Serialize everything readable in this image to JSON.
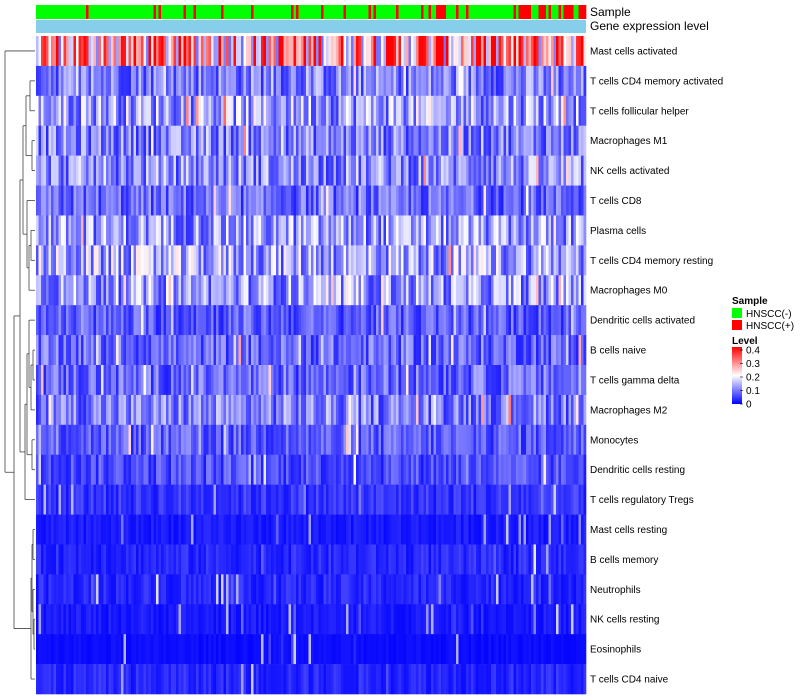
{
  "chart_data": {
    "type": "heatmap",
    "title": "",
    "annotation_labels": [
      "Sample",
      "Gene expression level"
    ],
    "rows": [
      "Mast cells activated",
      "T cells CD4 memory activated",
      "T cells follicular helper",
      "Macrophages M1",
      "NK cells activated",
      "T cells CD8",
      "Plasma cells",
      "T cells CD4 memory resting",
      "Macrophages M0",
      "Dendritic cells activated",
      "B cells naive",
      "T cells gamma delta",
      "Macrophages M2",
      "Monocytes",
      "Dendritic cells resting",
      "T cells regulatory  Tregs",
      "Mast cells resting",
      "B cells memory",
      "Neutrophils",
      "NK cells resting",
      "Eosinophils",
      "T cells CD4 naive"
    ],
    "row_mean_levels": [
      0.27,
      0.1,
      0.13,
      0.1,
      0.11,
      0.08,
      0.12,
      0.13,
      0.12,
      0.07,
      0.08,
      0.08,
      0.1,
      0.07,
      0.06,
      0.04,
      0.02,
      0.03,
      0.03,
      0.02,
      0.01,
      0.03
    ],
    "n_samples": 220,
    "sample_legend": {
      "title": "Sample",
      "entries": [
        {
          "label": "HNSCC(-)",
          "color": "#00ff00"
        },
        {
          "label": "HNSCC(+)",
          "color": "#ff0000"
        }
      ]
    },
    "level_legend": {
      "title": "Level",
      "ticks": [
        "0.4",
        "0.3",
        "0.2",
        "0.1",
        "0"
      ],
      "range": [
        0,
        0.4
      ],
      "colors": {
        "low": "#0000ff",
        "mid": "#ffffff",
        "high": "#ff0000"
      }
    },
    "gene_expression_bar_color": "#87ceeb"
  }
}
